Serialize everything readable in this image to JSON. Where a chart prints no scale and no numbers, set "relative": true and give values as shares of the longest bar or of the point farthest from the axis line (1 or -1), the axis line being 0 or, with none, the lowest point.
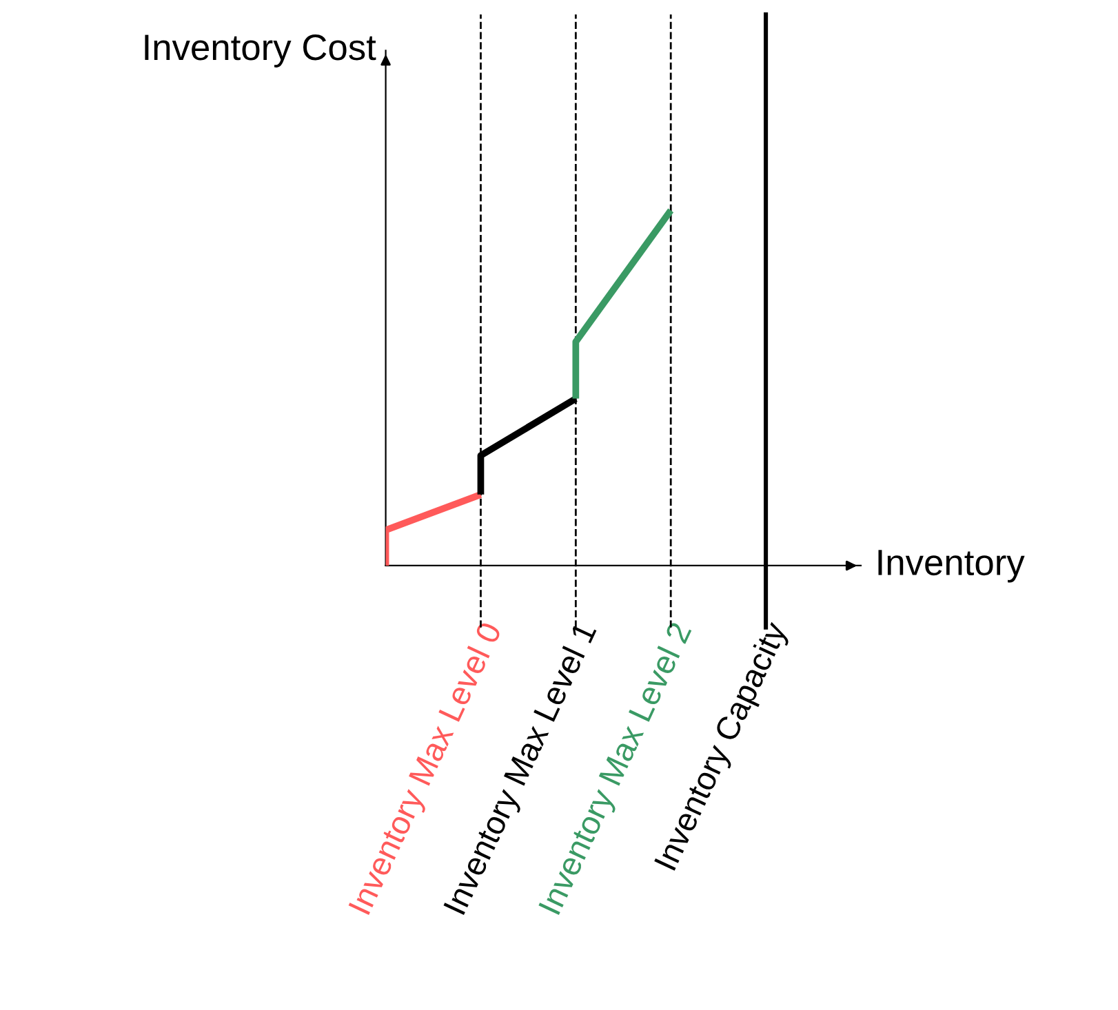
{
  "chart_data": {
    "type": "line",
    "relative": true,
    "xlabel": "Inventory",
    "ylabel": "Inventory Cost",
    "categories": [
      null,
      "Inventory Max Level 0",
      "Inventory Max Level 1",
      "Inventory Max Level 2",
      "Inventory Capacity"
    ],
    "series": [
      {
        "color": "#ff5a5a",
        "x": [
          null,
          null,
          "Inventory Max Level 0"
        ],
        "values": [
          0,
          0.1,
          0.2
        ]
      },
      {
        "color": "#000000",
        "x": [
          "Inventory Max Level 0",
          "Inventory Max Level 0",
          "Inventory Max Level 1"
        ],
        "values": [
          0.2,
          0.31,
          0.47
        ]
      },
      {
        "color": "#3a9a64",
        "x": [
          "Inventory Max Level 1",
          "Inventory Max Level 1",
          "Inventory Max Level 2"
        ],
        "values": [
          0.47,
          0.63,
          1
        ]
      }
    ],
    "ref_lines": [
      {
        "axis": "x",
        "value": "Inventory Max Level 0",
        "color": "#000000",
        "line_style": "dashed"
      },
      {
        "axis": "x",
        "value": "Inventory Max Level 1",
        "color": "#000000",
        "line_style": "dashed"
      },
      {
        "axis": "x",
        "value": "Inventory Max Level 2",
        "color": "#000000",
        "line_style": "dashed"
      },
      {
        "axis": "x",
        "value": "Inventory Capacity",
        "color": "#000000",
        "line_style": "solid"
      }
    ],
    "grid": false,
    "legend": false,
    "marker": "none",
    "line_style": "solid"
  }
}
